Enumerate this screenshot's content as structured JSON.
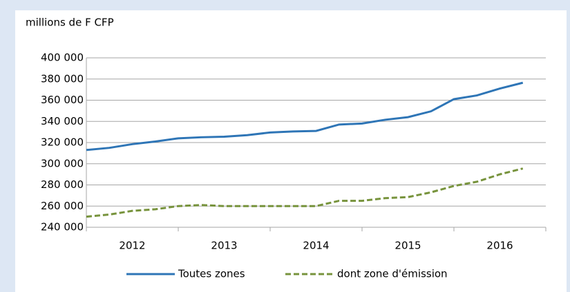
{
  "chart_data": {
    "type": "line",
    "title": "millions de F CFP",
    "categories": [
      null,
      null,
      "2012",
      null,
      null,
      null,
      "2013",
      null,
      null,
      null,
      "2014",
      null,
      null,
      null,
      "2015",
      null,
      null,
      null,
      "2016",
      null
    ],
    "series": [
      {
        "name": "Toutes zones",
        "color": "#2e75b6",
        "dash": false,
        "values": [
          313000,
          315000,
          318500,
          321000,
          324000,
          325000,
          325500,
          327000,
          329500,
          330500,
          331000,
          337000,
          338000,
          341500,
          344000,
          349500,
          361000,
          364500,
          371000,
          376500
        ]
      },
      {
        "name": "dont zone d'émission",
        "color": "#77933c",
        "dash": true,
        "values": [
          250000,
          252000,
          255500,
          257000,
          260000,
          261000,
          260000,
          260000,
          260000,
          260000,
          260000,
          265000,
          265000,
          267500,
          268500,
          273000,
          279000,
          283000,
          290000,
          295500
        ]
      }
    ],
    "ylim": [
      240000,
      400000
    ],
    "yticks": [
      {
        "value": 240000,
        "label": "240 000"
      },
      {
        "value": 260000,
        "label": "260 000"
      },
      {
        "value": 280000,
        "label": "280 000"
      },
      {
        "value": 300000,
        "label": "300 000"
      },
      {
        "value": 320000,
        "label": "320 000"
      },
      {
        "value": 340000,
        "label": "340 000"
      },
      {
        "value": 360000,
        "label": "360 000"
      },
      {
        "value": 380000,
        "label": "380 000"
      },
      {
        "value": 400000,
        "label": "400 000"
      }
    ],
    "grid": true,
    "legend": "bottom"
  }
}
